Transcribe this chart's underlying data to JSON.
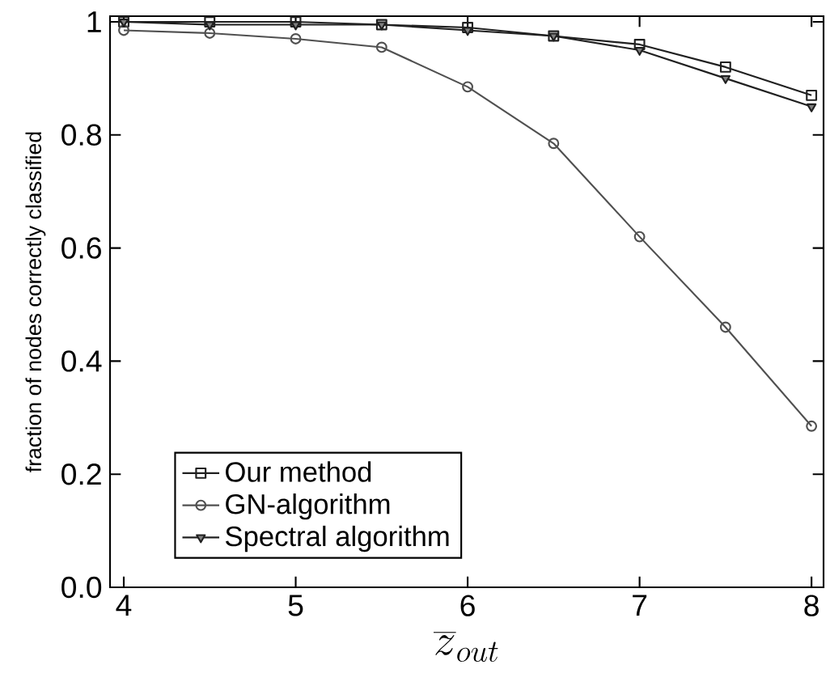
{
  "chart_data": {
    "type": "line",
    "xlabel": "\\overline{z}_{out}",
    "ylabel": "fraction of nodes correctly classified",
    "x": [
      4,
      4.5,
      5,
      5.5,
      6,
      6.5,
      7,
      7.5,
      8
    ],
    "series": [
      {
        "name": "Our method",
        "color": "#202020",
        "marker": "square",
        "values": [
          1,
          1,
          1,
          0.995,
          0.99,
          0.975,
          0.96,
          0.92,
          0.87
        ]
      },
      {
        "name": "GN-algorithm",
        "color": "#505050",
        "marker": "circle",
        "values": [
          0.985,
          0.98,
          0.97,
          0.955,
          0.885,
          0.785,
          0.62,
          0.46,
          0.285
        ]
      },
      {
        "name": "Spectral algorithm",
        "color": "#202020",
        "marker": "triangle",
        "values": [
          1,
          0.995,
          0.995,
          0.995,
          0.985,
          0.975,
          0.95,
          0.9,
          0.85
        ]
      }
    ],
    "xlim": [
      3.92,
      8.07
    ],
    "ylim": [
      0,
      1.01
    ],
    "xticks": [
      4,
      5,
      6,
      7,
      8
    ],
    "yticks": [
      {
        "value": 0,
        "label": "0.0"
      },
      0.2,
      0.4,
      0.6,
      0.8,
      1
    ],
    "legend": "bottom left",
    "line_style": "solid"
  }
}
